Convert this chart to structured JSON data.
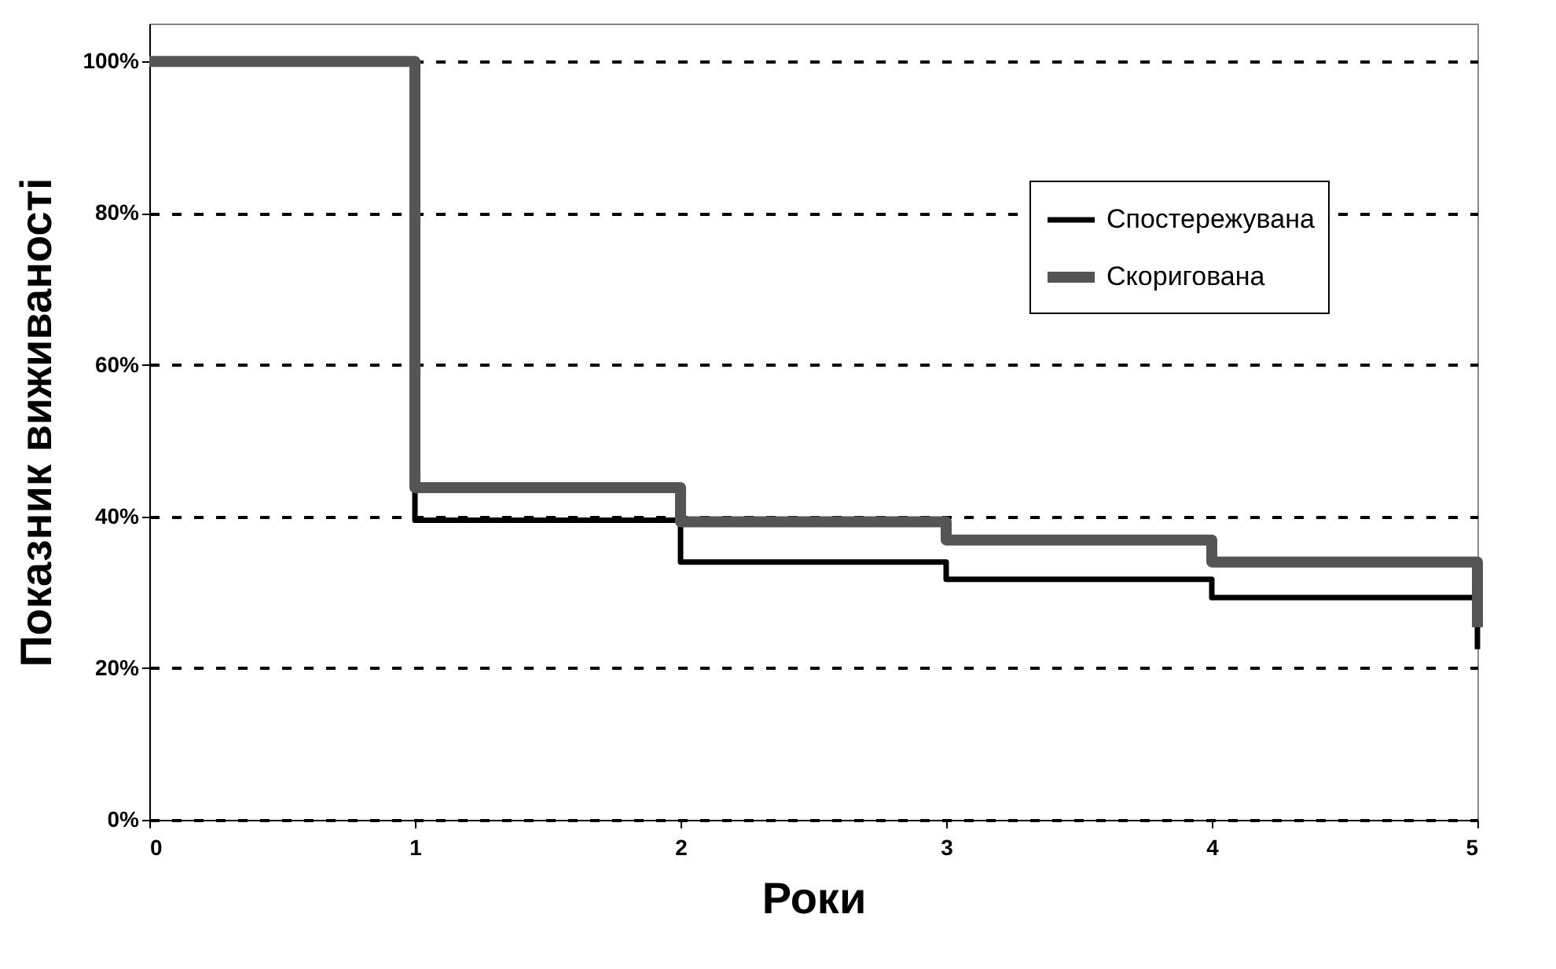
{
  "chart_data": {
    "type": "step",
    "xlabel": "Роки",
    "ylabel": "Показник виживаності",
    "x": [
      0,
      1,
      2,
      3,
      4,
      5
    ],
    "series": [
      {
        "name": "Спостережувана",
        "color": "#000000",
        "values": [
          100,
          39.5,
          34,
          31.7,
          29.3,
          22.5
        ]
      },
      {
        "name": "Скоригована",
        "color": "#555555",
        "values": [
          100,
          43.8,
          39.3,
          36.9,
          34,
          25.4
        ]
      }
    ],
    "xlim": [
      0,
      5
    ],
    "xticks": [
      0,
      1,
      2,
      3,
      4,
      5
    ],
    "ylim": [
      0,
      105
    ],
    "yticks": [
      {
        "value": 0,
        "label": "0%"
      },
      {
        "value": 20,
        "label": "20%"
      },
      {
        "value": 40,
        "label": "40%"
      },
      {
        "value": 60,
        "label": "60%"
      },
      {
        "value": 80,
        "label": "80%"
      },
      {
        "value": 100,
        "label": "100%"
      }
    ],
    "grid": "y",
    "legend": "right",
    "line_style": "solid"
  }
}
